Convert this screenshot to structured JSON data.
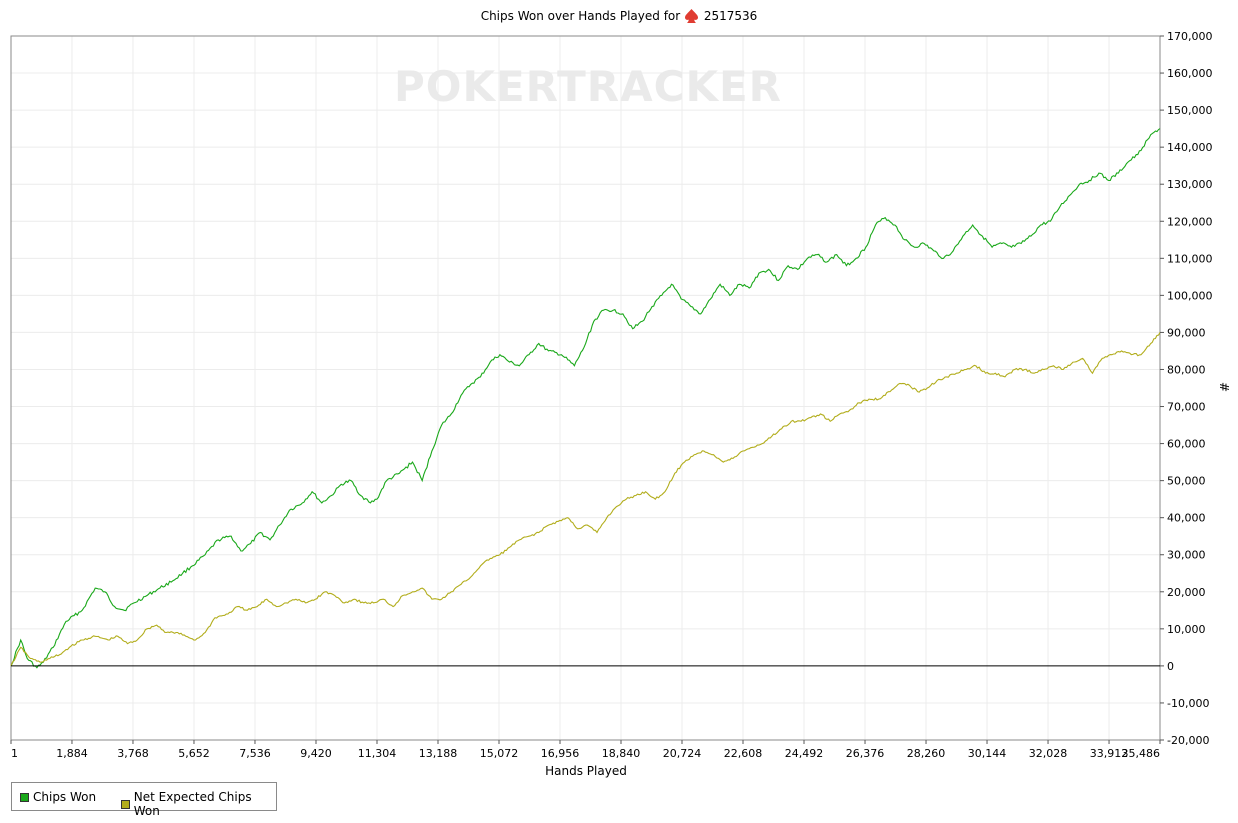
{
  "title": {
    "prefix": "Chips Won over Hands Played for",
    "player": "2517536",
    "icon": "spade-icon",
    "icon_color": "#e03c31"
  },
  "watermark": "POKERTRACKER",
  "colors": {
    "chips_won": "#1aa81a",
    "net_expected": "#b2ad1c",
    "grid": "#ececec",
    "zero_line": "#000000"
  },
  "chart_data": {
    "type": "line",
    "title": "Chips Won over Hands Played for 2517536",
    "xlabel": "Hands Played",
    "ylabel": "#",
    "xlim": [
      1,
      35486
    ],
    "ylim": [
      -20000,
      170000
    ],
    "xticks": [
      1,
      1884,
      3768,
      5652,
      7536,
      9420,
      11304,
      13188,
      15072,
      16956,
      18840,
      20724,
      22608,
      24492,
      26376,
      28260,
      30144,
      32028,
      33912,
      35486
    ],
    "xtick_labels": [
      "1",
      "1,884",
      "3,768",
      "5,652",
      "7,536",
      "9,420",
      "11,304",
      "13,188",
      "15,072",
      "16,956",
      "18,840",
      "20,724",
      "22,608",
      "24,492",
      "26,376",
      "28,260",
      "30,144",
      "32,028",
      "33,912",
      "35,486"
    ],
    "yticks": [
      -20000,
      -10000,
      0,
      10000,
      20000,
      30000,
      40000,
      50000,
      60000,
      70000,
      80000,
      90000,
      100000,
      110000,
      120000,
      130000,
      140000,
      150000,
      160000,
      170000
    ],
    "ytick_labels": [
      "-20,000",
      "-10,000",
      "0",
      "10,000",
      "20,000",
      "30,000",
      "40,000",
      "50,000",
      "60,000",
      "70,000",
      "80,000",
      "90,000",
      "100,000",
      "110,000",
      "120,000",
      "130,000",
      "140,000",
      "150,000",
      "160,000",
      "170,000"
    ],
    "y_axis_side": "right",
    "grid": true,
    "legend_position": "bottom-left",
    "series": [
      {
        "name": "Chips Won",
        "color": "#1aa81a",
        "x": [
          1,
          300,
          500,
          800,
          1000,
          1300,
          1700,
          2200,
          2600,
          2900,
          3200,
          3500,
          3800,
          4200,
          4600,
          5000,
          5300,
          5600,
          6000,
          6400,
          6800,
          7100,
          7400,
          7700,
          8000,
          8300,
          8600,
          9000,
          9300,
          9600,
          9900,
          10200,
          10500,
          10800,
          11100,
          11300,
          11600,
          12000,
          12400,
          12700,
          13000,
          13300,
          13600,
          13900,
          14200,
          14500,
          14800,
          15100,
          15400,
          15700,
          16000,
          16300,
          16600,
          17000,
          17400,
          17700,
          18000,
          18300,
          18600,
          18900,
          19200,
          19500,
          19800,
          20100,
          20400,
          20700,
          21000,
          21300,
          21600,
          21900,
          22200,
          22500,
          22800,
          23100,
          23400,
          23700,
          24000,
          24300,
          24600,
          24900,
          25200,
          25500,
          25800,
          26100,
          26400,
          26700,
          27000,
          27300,
          27600,
          27900,
          28200,
          28500,
          28800,
          29100,
          29400,
          29700,
          30000,
          30300,
          30600,
          30900,
          31200,
          31500,
          31800,
          32100,
          32400,
          32700,
          33000,
          33300,
          33600,
          33900,
          34200,
          34500,
          34800,
          35100,
          35300,
          35486
        ],
        "y": [
          0,
          7000,
          2000,
          -500,
          1000,
          5000,
          12000,
          15000,
          21000,
          20000,
          16000,
          15000,
          17000,
          19000,
          21000,
          23000,
          25000,
          27000,
          30000,
          34000,
          35000,
          31000,
          33000,
          36000,
          34000,
          38000,
          42000,
          44000,
          47000,
          44000,
          46000,
          49000,
          50000,
          46000,
          44000,
          45000,
          50000,
          52000,
          55000,
          50000,
          58000,
          65000,
          68000,
          73000,
          76000,
          78000,
          82000,
          84000,
          82000,
          81000,
          84000,
          87000,
          85000,
          84000,
          81000,
          86000,
          93000,
          96000,
          96000,
          95000,
          91000,
          93000,
          97000,
          100000,
          103000,
          99000,
          97000,
          95000,
          99000,
          103000,
          100000,
          103000,
          102000,
          106000,
          107000,
          104000,
          108000,
          107000,
          110000,
          111000,
          109000,
          111000,
          108000,
          110000,
          113000,
          119000,
          121000,
          119000,
          115000,
          113000,
          114000,
          112000,
          110000,
          112000,
          116000,
          119000,
          116000,
          113000,
          114000,
          113000,
          114000,
          116000,
          119000,
          120000,
          124000,
          127000,
          130000,
          131000,
          133000,
          131000,
          133000,
          136000,
          138000,
          142000,
          144000,
          145000
        ]
      },
      {
        "name": "Net Expected Chips Won",
        "color": "#b2ad1c",
        "x": [
          1,
          300,
          600,
          900,
          1200,
          1500,
          1800,
          2200,
          2600,
          3000,
          3300,
          3600,
          3900,
          4200,
          4500,
          4800,
          5100,
          5400,
          5700,
          6000,
          6300,
          6700,
          7000,
          7300,
          7600,
          7900,
          8200,
          8500,
          8800,
          9100,
          9400,
          9700,
          10000,
          10300,
          10600,
          10900,
          11200,
          11500,
          11800,
          12100,
          12400,
          12700,
          13000,
          13300,
          13600,
          13900,
          14200,
          14500,
          14800,
          15100,
          15400,
          15700,
          16000,
          16300,
          16600,
          16900,
          17200,
          17500,
          17800,
          18100,
          18400,
          18700,
          19000,
          19300,
          19600,
          19900,
          20200,
          20500,
          20800,
          21100,
          21400,
          21700,
          22000,
          22300,
          22600,
          22900,
          23200,
          23500,
          23800,
          24100,
          24400,
          24700,
          25000,
          25300,
          25600,
          25900,
          26200,
          26500,
          26800,
          27100,
          27400,
          27700,
          28000,
          28300,
          28600,
          28900,
          29200,
          29500,
          29800,
          30100,
          30400,
          30700,
          31000,
          31300,
          31600,
          31900,
          32200,
          32500,
          32800,
          33100,
          33400,
          33700,
          34000,
          34300,
          34600,
          34900,
          35200,
          35486
        ],
        "y": [
          0,
          5000,
          2000,
          1000,
          2000,
          3000,
          5000,
          7000,
          8000,
          7000,
          8000,
          6000,
          7000,
          10000,
          11000,
          9000,
          9000,
          8000,
          7000,
          9000,
          13000,
          14000,
          16000,
          15000,
          16000,
          18000,
          16000,
          17000,
          18000,
          17000,
          18000,
          20000,
          19000,
          17000,
          18000,
          17000,
          17000,
          18000,
          16000,
          19000,
          20000,
          21000,
          18000,
          18000,
          20000,
          22000,
          24000,
          27000,
          29000,
          30000,
          32000,
          34000,
          35000,
          36000,
          38000,
          39000,
          40000,
          37000,
          38000,
          36000,
          40000,
          43000,
          45000,
          46000,
          47000,
          45000,
          47000,
          52000,
          55000,
          57000,
          58000,
          57000,
          55000,
          56000,
          58000,
          59000,
          60000,
          62000,
          64000,
          66000,
          66000,
          67000,
          68000,
          66000,
          68000,
          69000,
          71000,
          72000,
          72000,
          74000,
          76000,
          76000,
          74000,
          75000,
          77000,
          78000,
          79000,
          80000,
          81000,
          79000,
          79000,
          78000,
          80000,
          80000,
          79000,
          80000,
          81000,
          80000,
          82000,
          83000,
          79000,
          83000,
          84000,
          85000,
          84000,
          84000,
          87000,
          90000
        ]
      }
    ]
  },
  "legend": {
    "items": [
      "Chips Won",
      "Net Expected Chips Won"
    ]
  }
}
